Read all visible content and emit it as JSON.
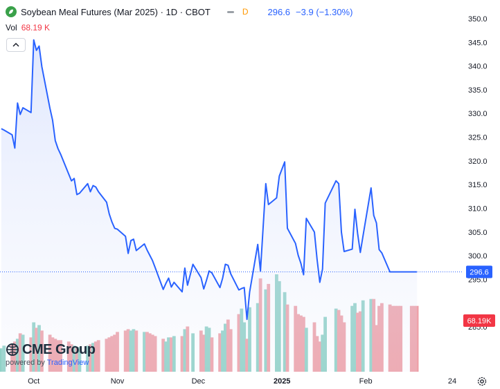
{
  "header": {
    "symbol_title": "Soybean Meal Futures (Mar 2025) · 1D · CBOT",
    "interval_badge": "D",
    "last_price": "296.6",
    "change": "−3.9 (−1.30%)"
  },
  "volume": {
    "label": "Vol",
    "value": "68.19 K"
  },
  "brand": {
    "name": "CME Group",
    "powered_by": "powered by",
    "tradingview": "TradingView"
  },
  "icons": {
    "logo": "soybean-leaf-icon",
    "collapse": "chevron-up-icon",
    "brand": "cme-globe-icon",
    "settings": "gear-icon"
  },
  "colors": {
    "line": "#2962ff",
    "area_top": "#c7d4fb",
    "vol_up": "#8fd1c6",
    "vol_down": "#eea1a8",
    "price_badge": "#2962ff",
    "vol_badge": "#f23645"
  },
  "chart_data": {
    "type": "area",
    "title": "Soybean Meal Futures (Mar 2025) · 1D · CBOT",
    "y_axis": {
      "ticks": [
        "350.0",
        "345.0",
        "340.0",
        "335.0",
        "330.0",
        "325.0",
        "320.0",
        "315.0",
        "310.0",
        "305.0",
        "300.0",
        "295.0",
        "285.0"
      ],
      "range": [
        280.8,
        351.3
      ],
      "position": "right"
    },
    "x_axis": {
      "ticks": [
        "Oct",
        "Nov",
        "Dec",
        "2025",
        "Feb",
        "24"
      ],
      "tick_dates": [
        "2024-10-01",
        "2024-11-01",
        "2024-12-01",
        "2025-01-01",
        "2025-02-01",
        "2025-02-24"
      ]
    },
    "last_price_label": "296.6",
    "last_volume_label": "68.19K",
    "series": [
      {
        "type": "price",
        "x": [
          "2024-09-19",
          "2024-09-20",
          "2024-09-23",
          "2024-09-24",
          "2024-09-25",
          "2024-09-26",
          "2024-09-27",
          "2024-09-30",
          "2024-10-01",
          "2024-10-02",
          "2024-10-03",
          "2024-10-04",
          "2024-10-07",
          "2024-10-08",
          "2024-10-09",
          "2024-10-10",
          "2024-10-11",
          "2024-10-14",
          "2024-10-15",
          "2024-10-16",
          "2024-10-17",
          "2024-10-18",
          "2024-10-21",
          "2024-10-22",
          "2024-10-23",
          "2024-10-24",
          "2024-10-25",
          "2024-10-28",
          "2024-10-29",
          "2024-10-30",
          "2024-10-31",
          "2024-11-01",
          "2024-11-04",
          "2024-11-05",
          "2024-11-06",
          "2024-11-07",
          "2024-11-08",
          "2024-11-11",
          "2024-11-12",
          "2024-11-13",
          "2024-11-14",
          "2024-11-15",
          "2024-11-18",
          "2024-11-19",
          "2024-11-20",
          "2024-11-21",
          "2024-11-22",
          "2024-11-25",
          "2024-11-26",
          "2024-11-27",
          "2024-11-29",
          "2024-12-02",
          "2024-12-03",
          "2024-12-04",
          "2024-12-05",
          "2024-12-06",
          "2024-12-09",
          "2024-12-10",
          "2024-12-11",
          "2024-12-12",
          "2024-12-13",
          "2024-12-16",
          "2024-12-17",
          "2024-12-18",
          "2024-12-19",
          "2024-12-20",
          "2024-12-23",
          "2024-12-24",
          "2024-12-26",
          "2024-12-27",
          "2024-12-30",
          "2024-12-31",
          "2025-01-02",
          "2025-01-03",
          "2025-01-06",
          "2025-01-07",
          "2025-01-08",
          "2025-01-09",
          "2025-01-10",
          "2025-01-13",
          "2025-01-14",
          "2025-01-15",
          "2025-01-16",
          "2025-01-17",
          "2025-01-21",
          "2025-01-22",
          "2025-01-23",
          "2025-01-24",
          "2025-01-27",
          "2025-01-28",
          "2025-01-29",
          "2025-01-30",
          "2025-01-31",
          "2025-02-03",
          "2025-02-04",
          "2025-02-05",
          "2025-02-06",
          "2025-02-07",
          "2025-02-10",
          "2025-02-11",
          "2025-02-12",
          "2025-02-13",
          "2025-02-14",
          "2025-02-18",
          "2025-02-19",
          "2025-02-20"
        ],
        "values": [
          326.8,
          326.5,
          325.5,
          322.7,
          332.2,
          329.8,
          331.2,
          330.2,
          345.5,
          343.3,
          344.2,
          339.9,
          331.1,
          328.6,
          324.3,
          322.6,
          321.4,
          317.2,
          315.8,
          316.3,
          312.9,
          313.2,
          315.2,
          313.5,
          314.8,
          314.5,
          313.5,
          311.3,
          308.8,
          307.1,
          305.8,
          305.6,
          304.1,
          300.5,
          303.2,
          303.5,
          301.1,
          302.5,
          301.2,
          300.1,
          299.0,
          297.5,
          292.9,
          294.2,
          295.3,
          293.4,
          294.4,
          292.4,
          297.4,
          293.8,
          298.2,
          295.4,
          293.0,
          294.8,
          296.8,
          296.4,
          293.3,
          295.3,
          298.2,
          298.0,
          296.2,
          292.8,
          293.1,
          293.3,
          286.6,
          292.4,
          302.4,
          296.8,
          315.2,
          310.8,
          312.2,
          316.8,
          319.8,
          305.8,
          302.6,
          300.1,
          298.4,
          296.0,
          307.9,
          305.0,
          299.2,
          294.4,
          297.2,
          311.1,
          315.8,
          315.2,
          305.0,
          300.9,
          301.4,
          309.8,
          304.7,
          300.7,
          304.2,
          314.3,
          308.5,
          306.9,
          301.3,
          300.6,
          296.6,
          296.6,
          296.6,
          296.6,
          296.6,
          296.6,
          296.6,
          296.6
        ]
      },
      {
        "type": "volume",
        "values": [
          17,
          19,
          20,
          22,
          24,
          28,
          27,
          25,
          36,
          32,
          34,
          30,
          27,
          25,
          24,
          23,
          23,
          22,
          20,
          19,
          18,
          18,
          19,
          20,
          21,
          22,
          23,
          24,
          25,
          26,
          27,
          29,
          30,
          31,
          30,
          31,
          30,
          29,
          29,
          28,
          27,
          26,
          24,
          22,
          25,
          25,
          26,
          26,
          31,
          33,
          28,
          30,
          27,
          33,
          32,
          25,
          28,
          30,
          35,
          38,
          31,
          42,
          46,
          36,
          24,
          47,
          50,
          68,
          60,
          64,
          71,
          66,
          58,
          49,
          48,
          42,
          41,
          40,
          32,
          36,
          26,
          22,
          27,
          40,
          46,
          45,
          41,
          36,
          48,
          50,
          43,
          44,
          52,
          53,
          53,
          34,
          48,
          50,
          49,
          48,
          48,
          48,
          48,
          48,
          48,
          48
        ],
        "direction": [
          "u",
          "u",
          "d",
          "d",
          "u",
          "d",
          "u",
          "d",
          "u",
          "d",
          "u",
          "d",
          "d",
          "d",
          "d",
          "d",
          "d",
          "d",
          "d",
          "u",
          "d",
          "u",
          "u",
          "d",
          "u",
          "d",
          "d",
          "d",
          "d",
          "d",
          "d",
          "d",
          "d",
          "d",
          "u",
          "u",
          "d",
          "u",
          "d",
          "d",
          "d",
          "d",
          "d",
          "u",
          "u",
          "d",
          "u",
          "d",
          "u",
          "d",
          "u",
          "d",
          "d",
          "u",
          "u",
          "d",
          "d",
          "u",
          "u",
          "d",
          "d",
          "d",
          "u",
          "u",
          "d",
          "u",
          "u",
          "d",
          "u",
          "d",
          "u",
          "u",
          "u",
          "d",
          "d",
          "d",
          "d",
          "d",
          "u",
          "d",
          "d",
          "d",
          "u",
          "u",
          "u",
          "d",
          "d",
          "d",
          "u",
          "u",
          "d",
          "d",
          "u",
          "u",
          "d",
          "d",
          "d",
          "d",
          "d",
          "d",
          "d",
          "d",
          "d",
          "d",
          "d",
          "d"
        ]
      }
    ]
  }
}
